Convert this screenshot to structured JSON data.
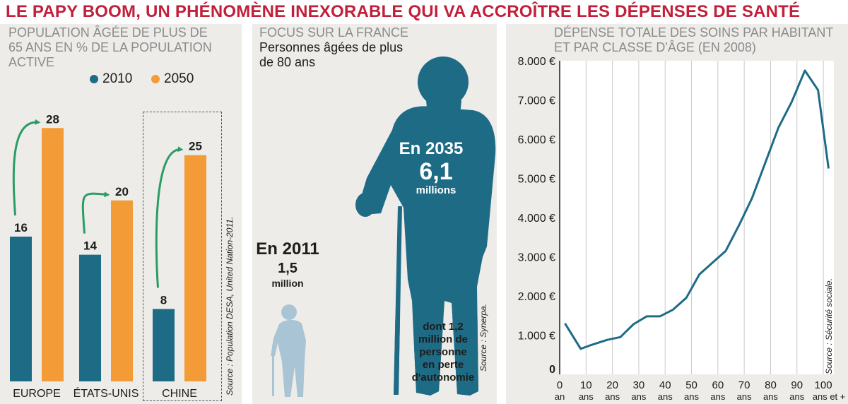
{
  "title": "LE PAPY BOOM, UN PHÉNOMÈNE INEXORABLE QUI VA ACCROÎTRE LES DÉPENSES DE SANTÉ",
  "colors": {
    "title": "#c21f3a",
    "teal": "#1e6b86",
    "orange": "#f39b36",
    "green": "#2a9d66",
    "light_teal": "#6fb0a4",
    "pale_blue": "#a9c5d5",
    "panel_bg": "#eeece8"
  },
  "left_panel": {
    "title_lines": [
      "POPULATION ÂGÉE DE PLUS DE",
      "65 ANS EN % DE LA POPULATION",
      "ACTIVE"
    ],
    "legend": [
      "2010",
      "2050"
    ],
    "source": "Source : Population DESA, United Nation-2011."
  },
  "middle_panel": {
    "title": "FOCUS SUR LA FRANCE",
    "subtitle_lines": [
      "Personnes âgées de plus",
      "de 80 ans"
    ],
    "y2011": {
      "year": "En 2011",
      "value": "1,5",
      "unit": "million"
    },
    "y2035": {
      "year": "En 2035",
      "value": "6,1",
      "unit": "millions"
    },
    "dependent_lines": [
      "dont 1,2",
      "million de",
      "personne",
      "en perte",
      "d'autonomie"
    ],
    "source": "Source : Synerpa."
  },
  "right_panel": {
    "title_lines": [
      "DÉPENSE TOTALE DES SOINS PAR HABITANT",
      "ET PAR CLASSE D'ÂGE (EN 2008)"
    ],
    "source": "Source : Sécurité sociale."
  },
  "chart_data": [
    {
      "type": "bar",
      "categories": [
        "EUROPE",
        "ÉTATS-UNIS",
        "CHINE"
      ],
      "series": [
        {
          "name": "2010",
          "values": [
            16,
            14,
            8
          ]
        },
        {
          "name": "2050",
          "values": [
            28,
            20,
            25
          ]
        }
      ],
      "ylim": [
        0,
        32
      ],
      "highlighted_category": "CHINE"
    },
    {
      "type": "line",
      "x": [
        2,
        8,
        12,
        18,
        23,
        28,
        33,
        38,
        43,
        48,
        53,
        58,
        63,
        68,
        73,
        78,
        83,
        88,
        93,
        98,
        102
      ],
      "values": [
        1300,
        650,
        750,
        880,
        950,
        1280,
        1480,
        1480,
        1650,
        1950,
        2550,
        2850,
        3150,
        3800,
        4500,
        5400,
        6300,
        6950,
        7750,
        7250,
        5250
      ],
      "ylim": [
        0,
        8000
      ],
      "yticks": [
        0,
        1000,
        2000,
        3000,
        4000,
        5000,
        6000,
        7000,
        8000
      ],
      "ytick_labels": [
        "0",
        "1.000 €",
        "2.000 €",
        "3.000 €",
        "4.000 €",
        "5.000 €",
        "6.000 €",
        "7.000 €",
        "8.000 €"
      ],
      "xticks": [
        0,
        10,
        20,
        30,
        40,
        50,
        60,
        70,
        80,
        90,
        100
      ],
      "xtick_labels": [
        "0",
        "10",
        "20",
        "30",
        "40",
        "50",
        "60",
        "70",
        "80",
        "90",
        "100"
      ],
      "xtick_units": [
        "an",
        "ans",
        "ans",
        "ans",
        "ans",
        "ans",
        "ans",
        "ans",
        "ans",
        "ans",
        "ans et +"
      ],
      "xlim": [
        0,
        104
      ],
      "grid": "vertical"
    }
  ]
}
